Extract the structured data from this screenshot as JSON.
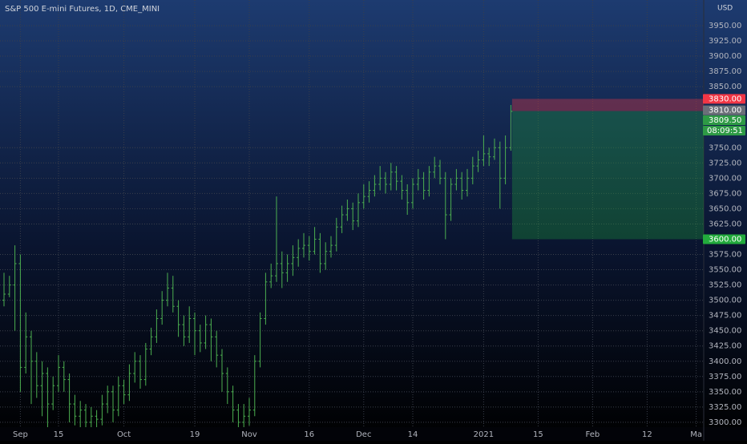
{
  "chart_data": {
    "type": "ohlc",
    "title": "S&P 500 E-mini Futures, 1D, CME_MINI",
    "currency": "USD",
    "color": "#4caf50",
    "grid": true,
    "ylim": [
      3292,
      3992
    ],
    "yticks": [
      {
        "value": 3300,
        "label": "3300.00"
      },
      {
        "value": 3325,
        "label": "3325.00"
      },
      {
        "value": 3350,
        "label": "3350.00"
      },
      {
        "value": 3375,
        "label": "3375.00"
      },
      {
        "value": 3400,
        "label": "3400.00"
      },
      {
        "value": 3425,
        "label": "3425.00"
      },
      {
        "value": 3450,
        "label": "3450.00"
      },
      {
        "value": 3475,
        "label": "3475.00"
      },
      {
        "value": 3500,
        "label": "3500.00"
      },
      {
        "value": 3525,
        "label": "3525.00"
      },
      {
        "value": 3550,
        "label": "3550.00"
      },
      {
        "value": 3575,
        "label": "3575.00"
      },
      {
        "value": 3625,
        "label": "3625.00"
      },
      {
        "value": 3650,
        "label": "3650.00"
      },
      {
        "value": 3675,
        "label": "3675.00"
      },
      {
        "value": 3700,
        "label": "3700.00"
      },
      {
        "value": 3725,
        "label": "3725.00"
      },
      {
        "value": 3750,
        "label": "3750.00"
      },
      {
        "value": 3850,
        "label": "3850.00"
      },
      {
        "value": 3875,
        "label": "3875.00"
      },
      {
        "value": 3900,
        "label": "3900.00"
      },
      {
        "value": 3925,
        "label": "3925.00"
      },
      {
        "value": 3950,
        "label": "3950.00"
      }
    ],
    "categories": [
      null,
      null,
      null,
      "Sep",
      null,
      null,
      null,
      null,
      null,
      null,
      "15",
      null,
      null,
      null,
      null,
      null,
      null,
      null,
      null,
      null,
      null,
      null,
      "Oct",
      null,
      null,
      null,
      null,
      null,
      null,
      null,
      null,
      null,
      null,
      null,
      null,
      "19",
      null,
      null,
      null,
      null,
      null,
      null,
      null,
      null,
      null,
      "Nov",
      null,
      null,
      null,
      null,
      null,
      null,
      null,
      null,
      null,
      null,
      "16",
      null,
      null,
      null,
      null,
      null,
      null,
      null,
      null,
      null,
      "Dec",
      null,
      null,
      null,
      null,
      null,
      null,
      null,
      null,
      "14",
      null,
      null,
      null,
      null,
      null,
      null,
      null,
      null,
      null,
      null,
      null,
      null,
      "2021",
      null,
      null,
      null,
      null,
      null,
      null,
      null,
      null,
      null,
      "15",
      null,
      null,
      null,
      null,
      null,
      null,
      null,
      null,
      null,
      "Feb",
      null,
      null,
      null,
      null,
      null,
      null,
      null,
      null,
      null,
      "12",
      null,
      null,
      null,
      null,
      null,
      null,
      null,
      null,
      "Ma"
    ],
    "open": [
      3500,
      3510,
      3525,
      3560,
      3390,
      3440,
      3400,
      3360,
      3380,
      3330,
      3360,
      3390,
      3370,
      3330,
      3310,
      3320,
      3300,
      3310,
      3305,
      3330,
      3350,
      3320,
      3360,
      3345,
      3380,
      3400,
      3370,
      3420,
      3440,
      3470,
      3500,
      3520,
      3490,
      3460,
      3440,
      3470,
      3450,
      3430,
      3460,
      3440,
      3410,
      3380,
      3350,
      3320,
      3300,
      3310,
      3320,
      3400,
      3470,
      3530,
      3540,
      3560,
      3545,
      3560,
      3570,
      3585,
      3590,
      3580,
      3600,
      3560,
      3580,
      3590,
      3620,
      3640,
      3650,
      3630,
      3660,
      3670,
      3680,
      3690,
      3700,
      3690,
      3710,
      3695,
      3680,
      3660,
      3690,
      3700,
      3680,
      3710,
      3720,
      3700,
      3640,
      3690,
      3700,
      3680,
      3700,
      3720,
      3730,
      3740,
      3735,
      3750,
      3700,
      3750,
      null,
      null,
      null,
      null,
      null,
      null,
      null,
      null,
      null,
      null,
      null,
      null,
      null,
      null,
      null,
      null,
      null,
      null,
      null,
      null,
      null,
      null,
      null,
      null,
      null,
      null,
      null,
      null,
      null,
      null,
      null,
      null,
      null,
      null
    ],
    "high": [
      3545,
      3540,
      3590,
      3575,
      3480,
      3450,
      3415,
      3400,
      3390,
      3375,
      3410,
      3400,
      3380,
      3345,
      3335,
      3330,
      3325,
      3320,
      3345,
      3360,
      3360,
      3375,
      3370,
      3395,
      3415,
      3410,
      3430,
      3455,
      3485,
      3515,
      3545,
      3540,
      3500,
      3475,
      3490,
      3480,
      3460,
      3475,
      3470,
      3450,
      3420,
      3390,
      3360,
      3330,
      3330,
      3340,
      3410,
      3480,
      3545,
      3560,
      3670,
      3580,
      3575,
      3590,
      3600,
      3610,
      3605,
      3620,
      3610,
      3595,
      3605,
      3635,
      3655,
      3665,
      3660,
      3675,
      3690,
      3695,
      3705,
      3720,
      3710,
      3725,
      3720,
      3705,
      3690,
      3700,
      3715,
      3710,
      3720,
      3735,
      3730,
      3710,
      3700,
      3715,
      3710,
      3715,
      3735,
      3745,
      3770,
      3750,
      3765,
      3760,
      3770,
      3820,
      null,
      null,
      null,
      null,
      null,
      null,
      null,
      null,
      null,
      null,
      null,
      null,
      null,
      null,
      null,
      null,
      null,
      null,
      null,
      null,
      null,
      null,
      null,
      null,
      null,
      null,
      null,
      null,
      null,
      null,
      null,
      null,
      null,
      null
    ],
    "low": [
      3490,
      3505,
      3450,
      3350,
      3380,
      3330,
      3340,
      3310,
      3290,
      3320,
      3350,
      3350,
      3300,
      3295,
      3290,
      3285,
      3290,
      3290,
      3295,
      3315,
      3300,
      3310,
      3330,
      3335,
      3365,
      3355,
      3360,
      3410,
      3430,
      3460,
      3490,
      3480,
      3440,
      3425,
      3430,
      3410,
      3415,
      3420,
      3400,
      3390,
      3350,
      3330,
      3300,
      3285,
      3290,
      3295,
      3310,
      3390,
      3460,
      3520,
      3530,
      3520,
      3530,
      3540,
      3555,
      3570,
      3565,
      3575,
      3545,
      3550,
      3570,
      3580,
      3610,
      3630,
      3615,
      3620,
      3650,
      3660,
      3670,
      3680,
      3675,
      3680,
      3680,
      3665,
      3640,
      3650,
      3680,
      3665,
      3670,
      3700,
      3690,
      3600,
      3630,
      3680,
      3665,
      3670,
      3690,
      3710,
      3720,
      3720,
      3730,
      3650,
      3690,
      3745,
      null,
      null,
      null,
      null,
      null,
      null,
      null,
      null,
      null,
      null,
      null,
      null,
      null,
      null,
      null,
      null,
      null,
      null,
      null,
      null,
      null,
      null,
      null,
      null,
      null,
      null,
      null,
      null,
      null,
      null,
      null,
      null,
      null,
      null
    ],
    "close": [
      3510,
      3525,
      3560,
      3390,
      3440,
      3400,
      3360,
      3380,
      3330,
      3360,
      3390,
      3370,
      3330,
      3310,
      3320,
      3300,
      3310,
      3305,
      3330,
      3350,
      3320,
      3360,
      3345,
      3380,
      3400,
      3370,
      3420,
      3440,
      3470,
      3500,
      3520,
      3490,
      3460,
      3440,
      3470,
      3450,
      3430,
      3460,
      3440,
      3410,
      3380,
      3350,
      3320,
      3300,
      3310,
      3320,
      3400,
      3470,
      3530,
      3540,
      3560,
      3545,
      3560,
      3570,
      3585,
      3590,
      3580,
      3600,
      3560,
      3580,
      3590,
      3620,
      3640,
      3650,
      3630,
      3660,
      3670,
      3680,
      3690,
      3700,
      3690,
      3710,
      3695,
      3680,
      3660,
      3690,
      3700,
      3680,
      3710,
      3720,
      3700,
      3640,
      3690,
      3700,
      3680,
      3700,
      3720,
      3730,
      3740,
      3735,
      3750,
      3700,
      3750,
      3809.5,
      null,
      null,
      null,
      null,
      null,
      null,
      null,
      null,
      null,
      null,
      null,
      null,
      null,
      null,
      null,
      null,
      null,
      null,
      null,
      null,
      null,
      null,
      null,
      null,
      null,
      null,
      null,
      null,
      null,
      null,
      null,
      null,
      null,
      null
    ],
    "position": {
      "stop": {
        "value": 3830,
        "label": "3830.00",
        "color": "#f23645"
      },
      "entry": {
        "value": 3810,
        "label": "3810.00",
        "color": "#6b6f78"
      },
      "target": {
        "value": 3600,
        "label": "3600.00",
        "color": "#22ab3c"
      }
    },
    "last_price": {
      "value": 3809.5,
      "label": "3809.50",
      "color": "#2e9a45"
    },
    "countdown": "08:09:51"
  }
}
